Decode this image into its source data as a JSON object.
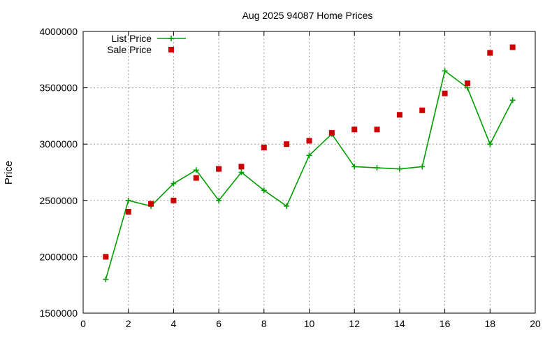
{
  "chart_data": {
    "type": "line",
    "title": "Aug 2025 94087 Home Prices",
    "ylabel": "Price",
    "xlabel": "",
    "xlim": [
      0,
      20
    ],
    "ylim": [
      1500000,
      4000000
    ],
    "xticks": [
      0,
      2,
      4,
      6,
      8,
      10,
      12,
      14,
      16,
      18,
      20
    ],
    "yticks": [
      1500000,
      2000000,
      2500000,
      3000000,
      3500000,
      4000000
    ],
    "grid": true,
    "legend_position": "top-left",
    "series": [
      {
        "name": "List Price",
        "style": "line-with-plus-markers",
        "color": "#009e00",
        "x": [
          1,
          2,
          3,
          4,
          5,
          6,
          7,
          8,
          9,
          10,
          11,
          12,
          13,
          14,
          15,
          16,
          17,
          18,
          19
        ],
        "values": [
          1800000,
          2500000,
          2450000,
          2650000,
          2770000,
          2500000,
          2750000,
          2590000,
          2450000,
          2900000,
          3090000,
          2800000,
          2790000,
          2780000,
          2800000,
          3650000,
          3500000,
          3000000,
          3390000
        ]
      },
      {
        "name": "Sale Price",
        "style": "square-markers",
        "color": "#cc0000",
        "x": [
          1,
          2,
          3,
          4,
          5,
          6,
          7,
          8,
          9,
          10,
          11,
          12,
          13,
          14,
          15,
          16,
          17,
          18,
          19
        ],
        "values": [
          2000000,
          2400000,
          2470000,
          2500000,
          2700000,
          2780000,
          2800000,
          2970000,
          3000000,
          3030000,
          3100000,
          3130000,
          3130000,
          3260000,
          3300000,
          3450000,
          3540000,
          3810000,
          3860000
        ]
      }
    ]
  }
}
